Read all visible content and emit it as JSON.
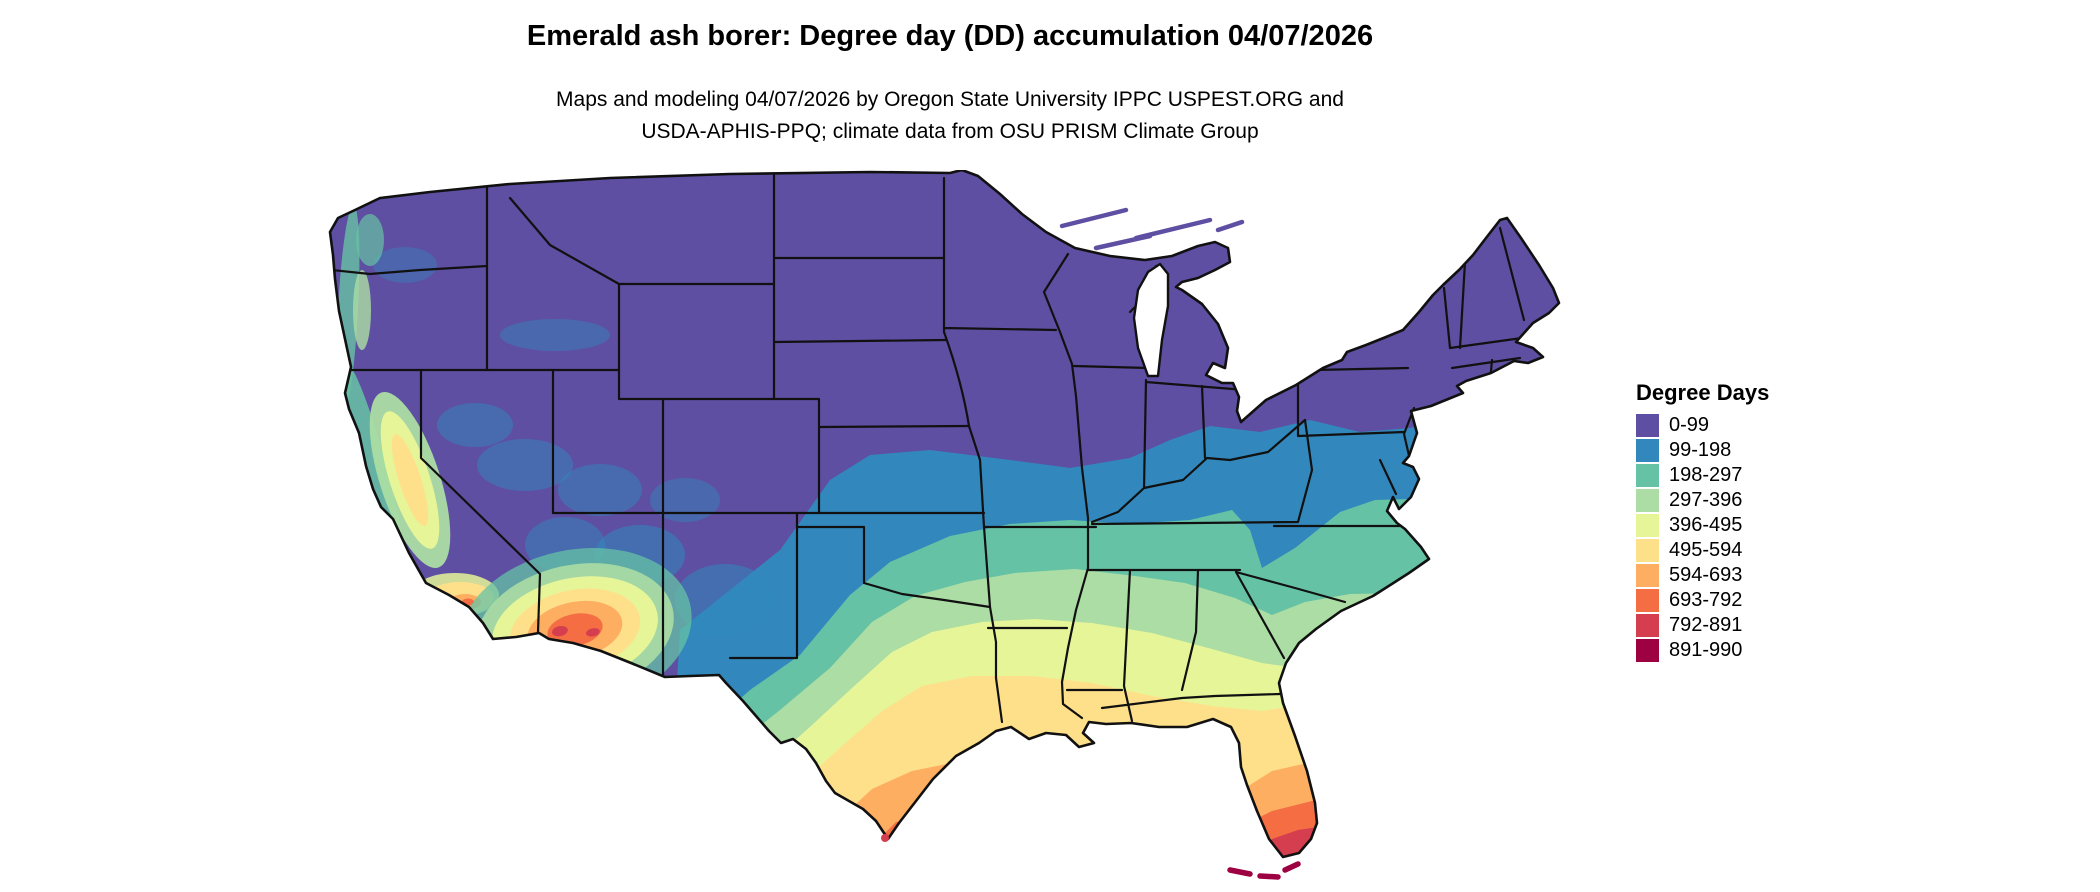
{
  "figure": {
    "title": "Emerald ash borer: Degree day (DD) accumulation 04/07/2026",
    "subtitle_line1": "Maps and modeling 04/07/2026 by Oregon State University IPPC USPEST.ORG and",
    "subtitle_line2": "USDA-APHIS-PPQ; climate data from OSU PRISM Climate Group"
  },
  "legend": {
    "title": "Degree Days",
    "entries": [
      {
        "label": "0-99",
        "color": "#5e4fa2"
      },
      {
        "label": "99-198",
        "color": "#3288bd"
      },
      {
        "label": "198-297",
        "color": "#66c2a5"
      },
      {
        "label": "297-396",
        "color": "#abdda4"
      },
      {
        "label": "396-495",
        "color": "#e6f598"
      },
      {
        "label": "495-594",
        "color": "#fee08b"
      },
      {
        "label": "594-693",
        "color": "#fdae61"
      },
      {
        "label": "693-792",
        "color": "#f46d43"
      },
      {
        "label": "792-891",
        "color": "#d53e4f"
      },
      {
        "label": "891-990",
        "color": "#9e0142"
      }
    ]
  },
  "chart_data": {
    "type": "choropleth_map",
    "region": "Contiguous United States",
    "variable": "Degree Days",
    "bins": [
      "0-99",
      "99-198",
      "198-297",
      "297-396",
      "396-495",
      "495-594",
      "594-693",
      "693-792",
      "792-891",
      "891-990"
    ],
    "bin_colors": [
      "#5e4fa2",
      "#3288bd",
      "#66c2a5",
      "#abdda4",
      "#e6f598",
      "#fee08b",
      "#fdae61",
      "#f46d43",
      "#d53e4f",
      "#9e0142"
    ],
    "legend_position": "right",
    "notes_visible_pattern": "Cold (low DD, purple) across the northern US and mountain West; increasing DD bands southward through blue, green, yellow; hottest (orange-red) in southern Texas, southern Florida and the low deserts of Arizona/southeastern California"
  }
}
